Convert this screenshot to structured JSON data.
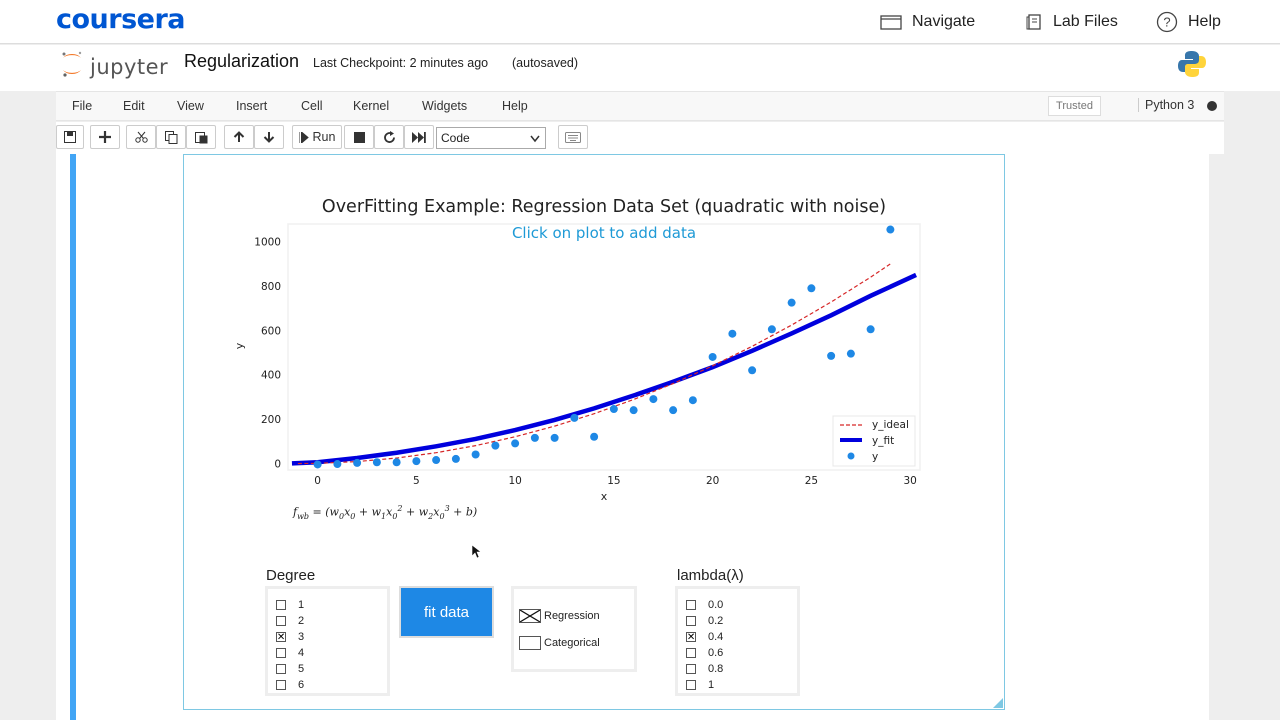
{
  "coursera": {
    "brand": "coursera",
    "nav": [
      {
        "label": "Navigate",
        "icon": "navigate-icon"
      },
      {
        "label": "Lab Files",
        "icon": "lab-files-icon"
      },
      {
        "label": "Help",
        "icon": "help-icon"
      }
    ]
  },
  "jupyter": {
    "logo_text": "jupyter",
    "notebook_title": "Regularization",
    "checkpoint": "Last Checkpoint: 2 minutes ago",
    "autosaved": "(autosaved)",
    "menu": [
      "File",
      "Edit",
      "View",
      "Insert",
      "Cell",
      "Kernel",
      "Widgets",
      "Help"
    ],
    "trusted": "Trusted",
    "kernel": "Python 3",
    "toolbar": {
      "run_label": "Run",
      "cell_type": "Code",
      "icons": [
        "save-icon",
        "add-cell-icon",
        "cut-icon",
        "copy-icon",
        "paste-icon",
        "move-up-icon",
        "move-down-icon",
        "run-icon",
        "stop-icon",
        "restart-icon",
        "fast-forward-icon",
        "keyboard-icon"
      ]
    }
  },
  "chart_data": {
    "type": "scatter",
    "title": "OverFitting Example: Regression Data Set (quadratic with noise)",
    "annotation": "Click on plot to add data",
    "xlabel": "x",
    "ylabel": "y",
    "xlim": [
      -1.5,
      30.5
    ],
    "ylim": [
      -30,
      1080
    ],
    "xticks": [
      0,
      5,
      10,
      15,
      20,
      25,
      30
    ],
    "yticks": [
      0,
      200,
      400,
      600,
      800,
      1000
    ],
    "grid": false,
    "legend_position": "lower-right",
    "series": [
      {
        "name": "y_ideal",
        "kind": "dashed-line",
        "color": "#d62728",
        "x": [
          -1,
          0,
          2,
          4,
          6,
          8,
          10,
          12,
          14,
          16,
          18,
          20,
          22,
          24,
          26,
          28,
          29
        ],
        "y": [
          -1,
          0,
          8,
          24,
          48,
          80,
          120,
          168,
          224,
          288,
          360,
          440,
          528,
          624,
          728,
          840,
          900
        ]
      },
      {
        "name": "y_fit",
        "kind": "thick-line",
        "color": "#0000dd",
        "x": [
          -1.3,
          0,
          2,
          4,
          6,
          8,
          10,
          12,
          14,
          16,
          18,
          20,
          22,
          24,
          26,
          28,
          30.3
        ],
        "y": [
          0,
          5,
          24,
          48,
          77,
          110,
          150,
          196,
          248,
          306,
          368,
          434,
          508,
          586,
          668,
          756,
          850
        ]
      },
      {
        "name": "y",
        "kind": "points",
        "color": "#1e88e5",
        "x": [
          0,
          1,
          2,
          3,
          4,
          5,
          6,
          7,
          8,
          9,
          10,
          11,
          12,
          13,
          14,
          15,
          16,
          17,
          18,
          19,
          20,
          21,
          22,
          23,
          24,
          25,
          26,
          27,
          28,
          29
        ],
        "y": [
          -5,
          -3,
          2,
          5,
          5,
          10,
          15,
          20,
          40,
          80,
          90,
          115,
          115,
          205,
          120,
          245,
          240,
          290,
          240,
          285,
          480,
          585,
          420,
          605,
          725,
          790,
          485,
          495,
          605,
          1055
        ]
      }
    ],
    "formula": "f_wb = (w_0 x_0 + w_1 x_0^2 + w_2 x_0^3 + b)"
  },
  "widgets": {
    "degree_label": "Degree",
    "degree_options": [
      {
        "label": "1",
        "checked": false
      },
      {
        "label": "2",
        "checked": false
      },
      {
        "label": "3",
        "checked": true
      },
      {
        "label": "4",
        "checked": false
      },
      {
        "label": "5",
        "checked": false
      },
      {
        "label": "6",
        "checked": false
      }
    ],
    "fit_button": "fit data",
    "mode_options": [
      {
        "label": "Regression",
        "checked": true
      },
      {
        "label": "Categorical",
        "checked": false
      }
    ],
    "lambda_label": "lambda(λ)",
    "lambda_options": [
      {
        "label": "0.0",
        "checked": false
      },
      {
        "label": "0.2",
        "checked": false
      },
      {
        "label": "0.4",
        "checked": true
      },
      {
        "label": "0.6",
        "checked": false
      },
      {
        "label": "0.8",
        "checked": false
      },
      {
        "label": "1",
        "checked": false
      }
    ]
  }
}
